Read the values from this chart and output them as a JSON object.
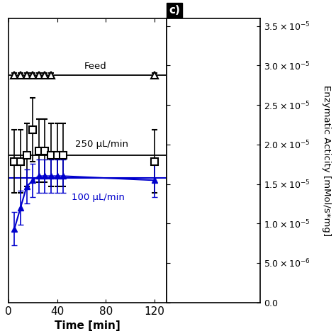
{
  "xlabel": "Time [min]",
  "ylabel": "Enzymatic Acticity [mMol/s*mg]",
  "feed_x": [
    5,
    10,
    15,
    20,
    25,
    30,
    35,
    120
  ],
  "feed_y": [
    3.28e-05,
    3.28e-05,
    3.28e-05,
    3.28e-05,
    3.28e-05,
    3.28e-05,
    3.28e-05,
    3.28e-05
  ],
  "feed_yerr": [
    1e-07,
    1e-07,
    1e-07,
    1e-07,
    1e-07,
    1e-07,
    1e-07,
    1e-07
  ],
  "flow250_x": [
    5,
    10,
    15,
    20,
    25,
    30,
    35,
    40,
    45,
    120
  ],
  "flow250_y": [
    2.87e-05,
    2.87e-05,
    2.9e-05,
    3.02e-05,
    2.92e-05,
    2.92e-05,
    2.9e-05,
    2.9e-05,
    2.9e-05,
    2.87e-05
  ],
  "flow250_yerr": [
    1.5e-06,
    1.5e-06,
    1.5e-06,
    1.5e-06,
    1.5e-06,
    1.5e-06,
    1.5e-06,
    1.5e-06,
    1.5e-06,
    1.5e-06
  ],
  "flow100_x": [
    5,
    10,
    15,
    20,
    25,
    30,
    35,
    40,
    45,
    120
  ],
  "flow100_y": [
    2.55e-05,
    2.65e-05,
    2.75e-05,
    2.78e-05,
    2.8e-05,
    2.8e-05,
    2.8e-05,
    2.8e-05,
    2.8e-05,
    2.78e-05
  ],
  "flow100_yerr": [
    8e-07,
    8e-07,
    8e-07,
    8e-07,
    8e-07,
    8e-07,
    8e-07,
    8e-07,
    8e-07,
    8e-07
  ],
  "feed_hline": 3.28e-05,
  "flow250_hline": 2.9e-05,
  "flow100_hline": 2.79e-05,
  "feed_color": "#000000",
  "flow250_color": "#000000",
  "flow100_color": "#0000cc",
  "label_feed": "Feed",
  "label_250": "250 μL/min",
  "label_100": "100 μL/min",
  "panel_label": "c)",
  "xlim": [
    0,
    130
  ],
  "ylim": [
    2.2e-05,
    3.55e-05
  ],
  "yticks": [
    0.0,
    5e-06,
    1e-05,
    1.5e-05,
    2e-05,
    2.5e-05,
    3e-05,
    3.5e-05
  ],
  "ytick_labels": [
    "0.0",
    "5.0x10⁻⁶",
    "1.0x10⁻⁵",
    "1.5x10⁻⁵",
    "2.0x10⁻⁵",
    "2.5x10⁻⁵",
    "3.0x10⁻⁵",
    "3.5x10⁻⁵"
  ],
  "xticks": [
    0,
    40,
    80,
    120
  ],
  "background_color": "#ffffff"
}
